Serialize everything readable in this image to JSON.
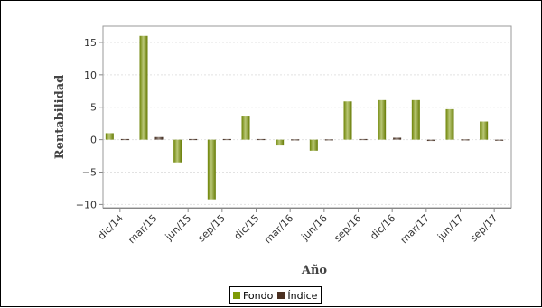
{
  "chart_data": {
    "type": "bar",
    "title": "",
    "xlabel": "Año",
    "ylabel": "Rentabilidad",
    "ylim": [
      -10.5,
      17.5
    ],
    "yticks": [
      -10,
      -5,
      0,
      5,
      10,
      15
    ],
    "grid": true,
    "legend_position": "bottom-center",
    "categories": [
      "dic/14",
      "mar/15",
      "jun/15",
      "sep/15",
      "dic/15",
      "mar/16",
      "jun/16",
      "sep/16",
      "dic/16",
      "mar/17",
      "jun/17",
      "sep/17"
    ],
    "series": [
      {
        "name": "Fondo",
        "color": "#7f9a05",
        "values": [
          1.0,
          16.0,
          -3.5,
          -9.2,
          3.7,
          -0.9,
          -1.7,
          5.9,
          6.1,
          6.1,
          4.7,
          2.8
        ]
      },
      {
        "name": "Índice",
        "color": "#4a2f20",
        "values": [
          0.1,
          0.4,
          0.1,
          0.1,
          0.1,
          0.05,
          0.05,
          0.1,
          0.3,
          -0.2,
          0.05,
          0.0
        ]
      }
    ]
  }
}
